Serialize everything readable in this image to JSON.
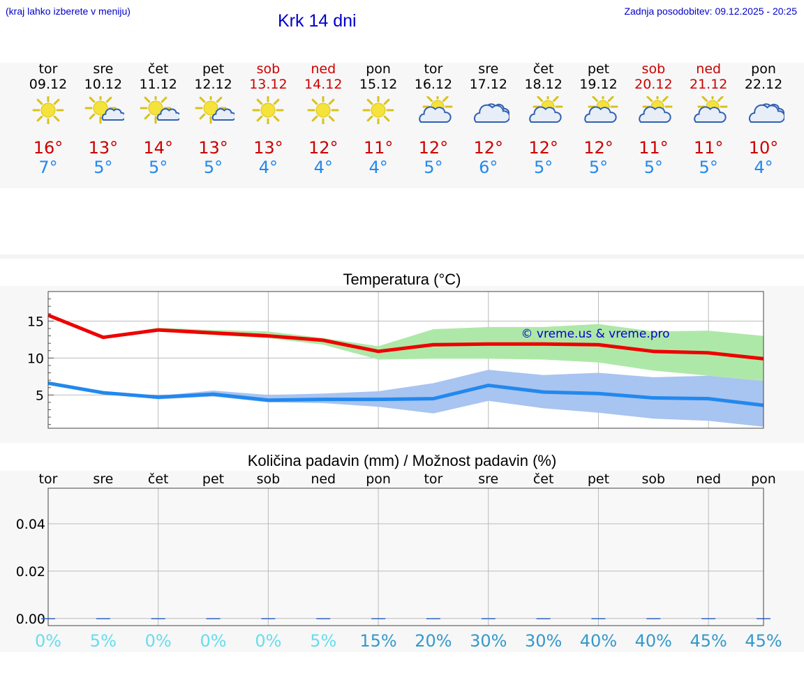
{
  "header": {
    "hint": "(kraj lahko izberete v meniju)",
    "title": "Krk 14 dni",
    "updated": "Zadnja posodobitev: 09.12.2025 - 20:25"
  },
  "days": [
    {
      "name": "tor",
      "date": "09.12",
      "weekend": false,
      "icon": "sun-icon",
      "tmax": "16°",
      "tmin": "7°"
    },
    {
      "name": "sre",
      "date": "10.12",
      "weekend": false,
      "icon": "sun-small-cloud-icon",
      "tmax": "13°",
      "tmin": "5°"
    },
    {
      "name": "čet",
      "date": "11.12",
      "weekend": false,
      "icon": "sun-small-cloud-icon",
      "tmax": "14°",
      "tmin": "5°"
    },
    {
      "name": "pet",
      "date": "12.12",
      "weekend": false,
      "icon": "sun-small-cloud-icon",
      "tmax": "13°",
      "tmin": "5°"
    },
    {
      "name": "sob",
      "date": "13.12",
      "weekend": true,
      "icon": "sun-icon",
      "tmax": "13°",
      "tmin": "4°"
    },
    {
      "name": "ned",
      "date": "14.12",
      "weekend": true,
      "icon": "sun-icon",
      "tmax": "12°",
      "tmin": "4°"
    },
    {
      "name": "pon",
      "date": "15.12",
      "weekend": false,
      "icon": "sun-icon",
      "tmax": "11°",
      "tmin": "4°"
    },
    {
      "name": "tor",
      "date": "16.12",
      "weekend": false,
      "icon": "partly-cloudy-icon",
      "tmax": "12°",
      "tmin": "5°"
    },
    {
      "name": "sre",
      "date": "17.12",
      "weekend": false,
      "icon": "cloudy-icon",
      "tmax": "12°",
      "tmin": "6°"
    },
    {
      "name": "čet",
      "date": "18.12",
      "weekend": false,
      "icon": "partly-cloudy-icon",
      "tmax": "12°",
      "tmin": "5°"
    },
    {
      "name": "pet",
      "date": "19.12",
      "weekend": false,
      "icon": "partly-cloudy-icon",
      "tmax": "12°",
      "tmin": "5°"
    },
    {
      "name": "sob",
      "date": "20.12",
      "weekend": true,
      "icon": "partly-cloudy-icon",
      "tmax": "11°",
      "tmin": "5°"
    },
    {
      "name": "ned",
      "date": "21.12",
      "weekend": true,
      "icon": "partly-cloudy-icon",
      "tmax": "11°",
      "tmin": "5°"
    },
    {
      "name": "pon",
      "date": "22.12",
      "weekend": false,
      "icon": "cloudy-icon",
      "tmax": "10°",
      "tmin": "4°"
    }
  ],
  "colors": {
    "link": "#0000cc",
    "weekend": "#cc0000",
    "tmax_line": "#ee0000",
    "tmax_band": "#aee8a8",
    "tmin_line": "#2288ee",
    "tmin_band": "#a8c4f0",
    "sun": "#f5e23a",
    "sun_stroke": "#d9c21a",
    "cloud_stroke": "#3060b0",
    "prob_low": "#66ddee",
    "prob_high": "#3399cc"
  },
  "chart_data": [
    {
      "type": "line",
      "title": "Temperatura (°C)",
      "xlabel": "",
      "ylabel": "",
      "ylim": [
        0.5,
        19
      ],
      "yticks": [
        5,
        10,
        15
      ],
      "watermark": "© vreme.us & vreme.pro",
      "x": [
        0,
        1,
        2,
        3,
        4,
        5,
        6,
        7,
        8,
        9,
        10,
        11,
        12,
        13
      ],
      "series": [
        {
          "name": "tmax",
          "values": [
            15.8,
            12.8,
            13.8,
            13.4,
            13.0,
            12.4,
            10.9,
            11.8,
            11.9,
            11.9,
            11.8,
            10.9,
            10.7,
            9.9
          ],
          "band_low": [
            15.8,
            12.8,
            13.6,
            13.1,
            12.7,
            11.8,
            9.8,
            9.9,
            9.9,
            9.8,
            9.4,
            8.3,
            7.6,
            6.9
          ],
          "band_high": [
            15.8,
            12.8,
            14.1,
            13.8,
            13.6,
            12.7,
            11.6,
            13.9,
            14.2,
            14.2,
            14.6,
            13.6,
            13.7,
            13.0
          ]
        },
        {
          "name": "tmin",
          "values": [
            6.6,
            5.3,
            4.7,
            5.1,
            4.3,
            4.4,
            4.4,
            4.5,
            6.3,
            5.4,
            5.2,
            4.6,
            4.5,
            3.6
          ],
          "band_low": [
            6.6,
            5.3,
            4.4,
            4.8,
            4.0,
            3.9,
            3.4,
            2.5,
            4.2,
            3.2,
            2.6,
            1.8,
            1.5,
            0.7
          ],
          "band_high": [
            6.6,
            5.3,
            4.9,
            5.6,
            5.0,
            5.2,
            5.5,
            6.6,
            8.4,
            7.7,
            8.0,
            7.4,
            7.6,
            6.9
          ]
        }
      ]
    },
    {
      "type": "bar",
      "title": "Količina padavin (mm) / Možnost padavin (%)",
      "ylim": [
        -0.003,
        0.055
      ],
      "yticks": [
        "0.00",
        "0.02",
        "0.04"
      ],
      "ytick_values": [
        0.0,
        0.02,
        0.04
      ],
      "categories": [
        "tor",
        "sre",
        "čet",
        "pet",
        "sob",
        "ned",
        "pon",
        "tor",
        "sre",
        "čet",
        "pet",
        "sob",
        "ned",
        "pon"
      ],
      "values": [
        0,
        0,
        0,
        0,
        0,
        0,
        0,
        0,
        0,
        0,
        0,
        0,
        0,
        0
      ],
      "probability": [
        "0%",
        "5%",
        "0%",
        "0%",
        "0%",
        "5%",
        "15%",
        "20%",
        "30%",
        "30%",
        "40%",
        "40%",
        "45%",
        "45%"
      ],
      "probability_values": [
        0,
        5,
        0,
        0,
        0,
        5,
        15,
        20,
        30,
        30,
        40,
        40,
        45,
        45
      ]
    }
  ]
}
